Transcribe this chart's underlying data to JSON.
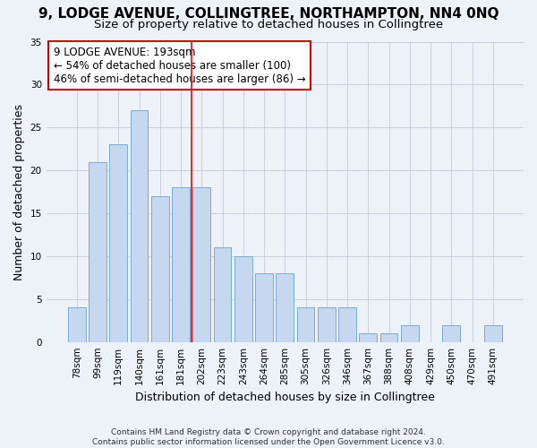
{
  "title": "9, LODGE AVENUE, COLLINGTREE, NORTHAMPTON, NN4 0NQ",
  "subtitle": "Size of property relative to detached houses in Collingtree",
  "xlabel": "Distribution of detached houses by size in Collingtree",
  "ylabel": "Number of detached properties",
  "categories": [
    "78sqm",
    "99sqm",
    "119sqm",
    "140sqm",
    "161sqm",
    "181sqm",
    "202sqm",
    "223sqm",
    "243sqm",
    "264sqm",
    "285sqm",
    "305sqm",
    "326sqm",
    "346sqm",
    "367sqm",
    "388sqm",
    "408sqm",
    "429sqm",
    "450sqm",
    "470sqm",
    "491sqm"
  ],
  "values": [
    4,
    21,
    23,
    27,
    17,
    18,
    18,
    11,
    10,
    8,
    8,
    4,
    4,
    4,
    1,
    1,
    2,
    0,
    2,
    0,
    2
  ],
  "bar_color": "#c5d8f0",
  "bar_edge_color": "#7aabd4",
  "annotation_text": "9 LODGE AVENUE: 193sqm\n← 54% of detached houses are smaller (100)\n46% of semi-detached houses are larger (86) →",
  "annotation_box_color": "#ffffff",
  "annotation_box_edge_color": "#cc0000",
  "ylim": [
    0,
    35
  ],
  "yticks": [
    0,
    5,
    10,
    15,
    20,
    25,
    30,
    35
  ],
  "grid_color": "#c8d0dc",
  "background_color": "#edf1f8",
  "footer": "Contains HM Land Registry data © Crown copyright and database right 2024.\nContains public sector information licensed under the Open Government Licence v3.0.",
  "title_fontsize": 11,
  "subtitle_fontsize": 9.5,
  "xlabel_fontsize": 9,
  "ylabel_fontsize": 9,
  "tick_fontsize": 7.5,
  "annotation_fontsize": 8.5,
  "footer_fontsize": 6.5
}
